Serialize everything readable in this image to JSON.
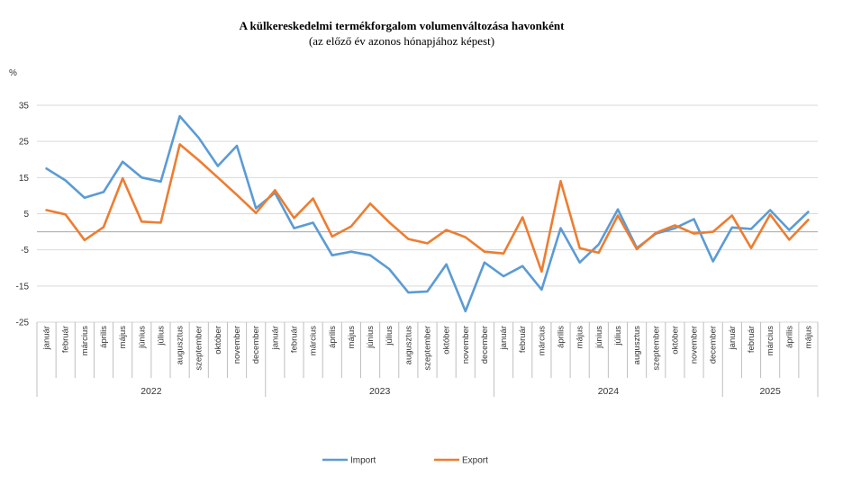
{
  "chart_data": {
    "type": "line",
    "title": "A külkereskedelmi termékforgalom volumenváltozása havonként",
    "subtitle": "(az előző év azonos hónapjához képest)",
    "ylabel": "%",
    "ylim": [
      -25,
      35
    ],
    "yticks": [
      35,
      25,
      15,
      5,
      -5,
      -15,
      -25
    ],
    "grid": true,
    "legend_position": "bottom",
    "months": [
      "január",
      "február",
      "március",
      "április",
      "május",
      "június",
      "július",
      "augusztus",
      "szeptember",
      "október",
      "november",
      "december",
      "január",
      "február",
      "március",
      "április",
      "május",
      "június",
      "július",
      "augusztus",
      "szeptember",
      "október",
      "november",
      "december",
      "január",
      "február",
      "március",
      "április",
      "május",
      "június",
      "július",
      "augusztus",
      "szeptember",
      "október",
      "november",
      "december",
      "január",
      "február",
      "március",
      "április",
      "május"
    ],
    "years": [
      {
        "label": "2022",
        "count": 12
      },
      {
        "label": "2023",
        "count": 12
      },
      {
        "label": "2024",
        "count": 12
      },
      {
        "label": "2025",
        "count": 5
      }
    ],
    "series": [
      {
        "name": "Import",
        "color": "#5b9bd5",
        "values": [
          17.5,
          14.2,
          9.4,
          11.0,
          19.4,
          15.0,
          13.9,
          32.0,
          26.0,
          18.2,
          23.8,
          6.5,
          10.8,
          1.0,
          2.5,
          -6.5,
          -5.5,
          -6.5,
          -10.3,
          -16.8,
          -16.5,
          -9.0,
          -22.0,
          -8.5,
          -12.3,
          -9.5,
          -16.0,
          1.0,
          -8.5,
          -3.5,
          6.2,
          -4.5,
          -0.5,
          1.0,
          3.5,
          -8.2,
          1.2,
          0.8,
          6.0,
          0.5,
          5.5
        ]
      },
      {
        "name": "Export",
        "color": "#ed7d31",
        "values": [
          6.0,
          4.8,
          -2.3,
          1.3,
          14.8,
          2.8,
          2.5,
          24.2,
          19.8,
          15.0,
          10.2,
          5.2,
          11.5,
          3.8,
          9.2,
          -1.3,
          1.5,
          7.8,
          2.6,
          -2.0,
          -3.2,
          0.5,
          -1.5,
          -5.5,
          -6.0,
          4.0,
          -11.0,
          14.0,
          -4.5,
          -5.8,
          4.5,
          -4.8,
          -0.3,
          1.8,
          -0.5,
          0.0,
          4.5,
          -4.5,
          4.8,
          -2.2,
          3.3
        ]
      }
    ]
  }
}
